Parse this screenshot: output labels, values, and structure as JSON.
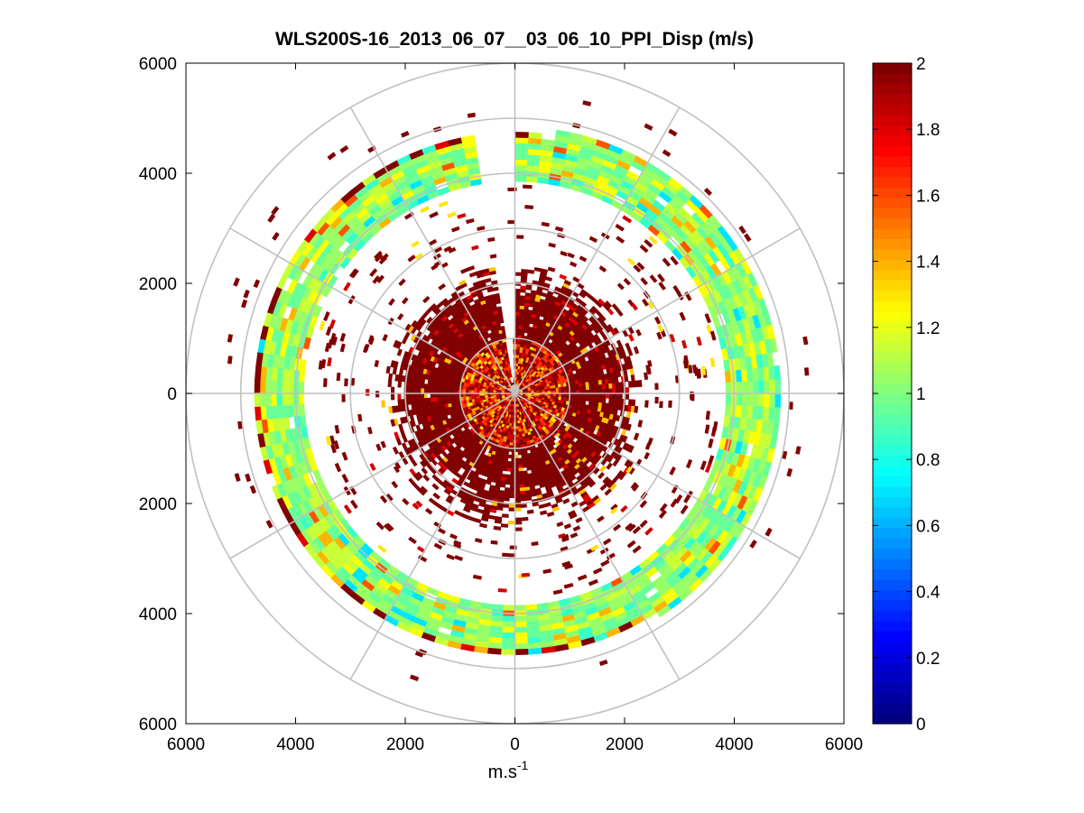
{
  "chart_data": {
    "type": "heatmap",
    "subtype": "polar-ppi",
    "title": "WLS200S-16_2013_06_07__03_06_10_PPI_Disp (m/s)",
    "xlabel": "m.s",
    "xlabel_superscript": "-1",
    "ylabel": "",
    "xlim": [
      -6000,
      6000
    ],
    "ylim": [
      -6000,
      6000
    ],
    "x_ticks": [
      {
        "value": -6000,
        "label": "6000"
      },
      {
        "value": -4000,
        "label": "4000"
      },
      {
        "value": -2000,
        "label": "2000"
      },
      {
        "value": 0,
        "label": "0"
      },
      {
        "value": 2000,
        "label": "2000"
      },
      {
        "value": 4000,
        "label": "4000"
      },
      {
        "value": 6000,
        "label": "6000"
      }
    ],
    "y_ticks": [
      {
        "value": 6000,
        "label": "6000"
      },
      {
        "value": 4000,
        "label": "4000"
      },
      {
        "value": 2000,
        "label": "2000"
      },
      {
        "value": 0,
        "label": "0"
      },
      {
        "value": -2000,
        "label": "2000"
      },
      {
        "value": -4000,
        "label": "4000"
      },
      {
        "value": -6000,
        "label": "6000"
      }
    ],
    "polar_grid_radii": [
      1000,
      2000,
      3000,
      4000,
      5000,
      6000
    ],
    "polar_grid_angles_deg": [
      0,
      30,
      60,
      90,
      120,
      150,
      180,
      210,
      240,
      270,
      300,
      330
    ],
    "colorbar": {
      "min": 0,
      "max": 2,
      "ticks": [
        {
          "value": 0,
          "label": "0"
        },
        {
          "value": 0.2,
          "label": "0.2"
        },
        {
          "value": 0.4,
          "label": "0.4"
        },
        {
          "value": 0.6,
          "label": "0.6"
        },
        {
          "value": 0.8,
          "label": "0.8"
        },
        {
          "value": 1.0,
          "label": "1"
        },
        {
          "value": 1.2,
          "label": "1.2"
        },
        {
          "value": 1.4,
          "label": "1.4"
        },
        {
          "value": 1.6,
          "label": "1.6"
        },
        {
          "value": 1.8,
          "label": "1.8"
        },
        {
          "value": 2.0,
          "label": "2"
        }
      ],
      "colormap": "jet"
    },
    "field_description": {
      "gap_sector_deg": [
        90,
        97
      ],
      "regions": [
        {
          "r_range": [
            0,
            1000
          ],
          "value_range": [
            1.3,
            2.0
          ],
          "dominant": 1.75
        },
        {
          "r_range": [
            1000,
            2500
          ],
          "value_range": [
            1.8,
            2.0
          ],
          "dominant": 2.0
        },
        {
          "r_range": [
            3850,
            4850
          ],
          "value_range": [
            0.6,
            1.9
          ],
          "dominant": 1.05
        }
      ]
    }
  }
}
